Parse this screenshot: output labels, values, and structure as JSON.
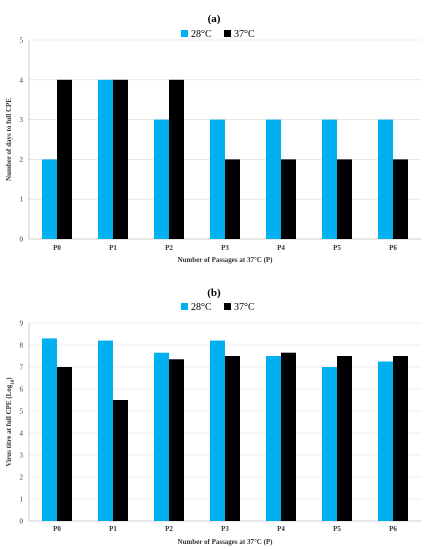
{
  "chart_data": [
    {
      "type": "bar",
      "title": "(a)",
      "categories": [
        "P0",
        "P1",
        "P2",
        "P3",
        "P4",
        "P5",
        "P6"
      ],
      "series": [
        {
          "name": "28°C",
          "color": "#00b0f0",
          "values": [
            2,
            4,
            3,
            3,
            3,
            3,
            3
          ]
        },
        {
          "name": "37°C",
          "color": "#000000",
          "values": [
            4,
            4,
            4,
            2,
            2,
            2,
            2
          ]
        }
      ],
      "xlabel": "Number of Passages at 37°C (P)",
      "ylabel": "Number of days to full CPE",
      "ylim": [
        0,
        5
      ],
      "yticks": [
        "0",
        "1",
        "2",
        "3",
        "4",
        "5"
      ],
      "grid": true,
      "legend_position": "top"
    },
    {
      "type": "bar",
      "title": "(b)",
      "categories": [
        "P0",
        "P1",
        "P2",
        "P3",
        "P4",
        "P5",
        "P6"
      ],
      "series": [
        {
          "name": "28°C",
          "color": "#00b0f0",
          "values": [
            8.3,
            8.2,
            7.65,
            8.2,
            7.5,
            7.0,
            7.25
          ]
        },
        {
          "name": "37°C",
          "color": "#000000",
          "values": [
            7.0,
            5.5,
            7.35,
            7.5,
            7.65,
            7.5,
            7.5
          ]
        }
      ],
      "xlabel": "Number of Passages at 37°C (P)",
      "ylabel": "Virus titre at full CPE (Log10)",
      "ylim": [
        0,
        9
      ],
      "yticks": [
        "0",
        "1",
        "2",
        "3",
        "4",
        "5",
        "6",
        "7",
        "8",
        "9"
      ],
      "grid": true,
      "legend_position": "top"
    }
  ]
}
